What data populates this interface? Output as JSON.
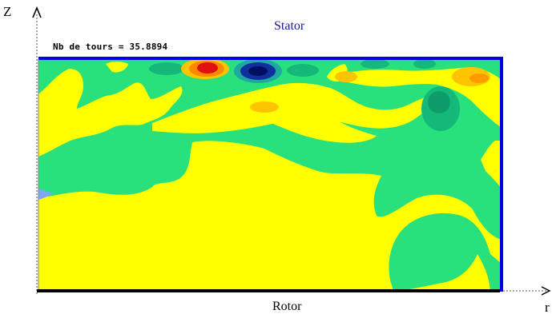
{
  "labels": {
    "z_axis": "Z",
    "r_axis": "r",
    "top_wall": "Stator",
    "bottom_wall": "Rotor",
    "turns_text": "Nb de tours = ",
    "turns_value": "35.8894"
  },
  "colors": {
    "background_field": "#ffff00",
    "cool_region": "#28e07c",
    "deep_cool": "#14b878",
    "mild_warm": "#ffc400",
    "warm": "#ff8800",
    "hot": "#e01010",
    "cold": "#1030a0",
    "very_cold": "#000f60",
    "stator_wall": "#0000e0",
    "rotor_wall": "#000000"
  }
}
